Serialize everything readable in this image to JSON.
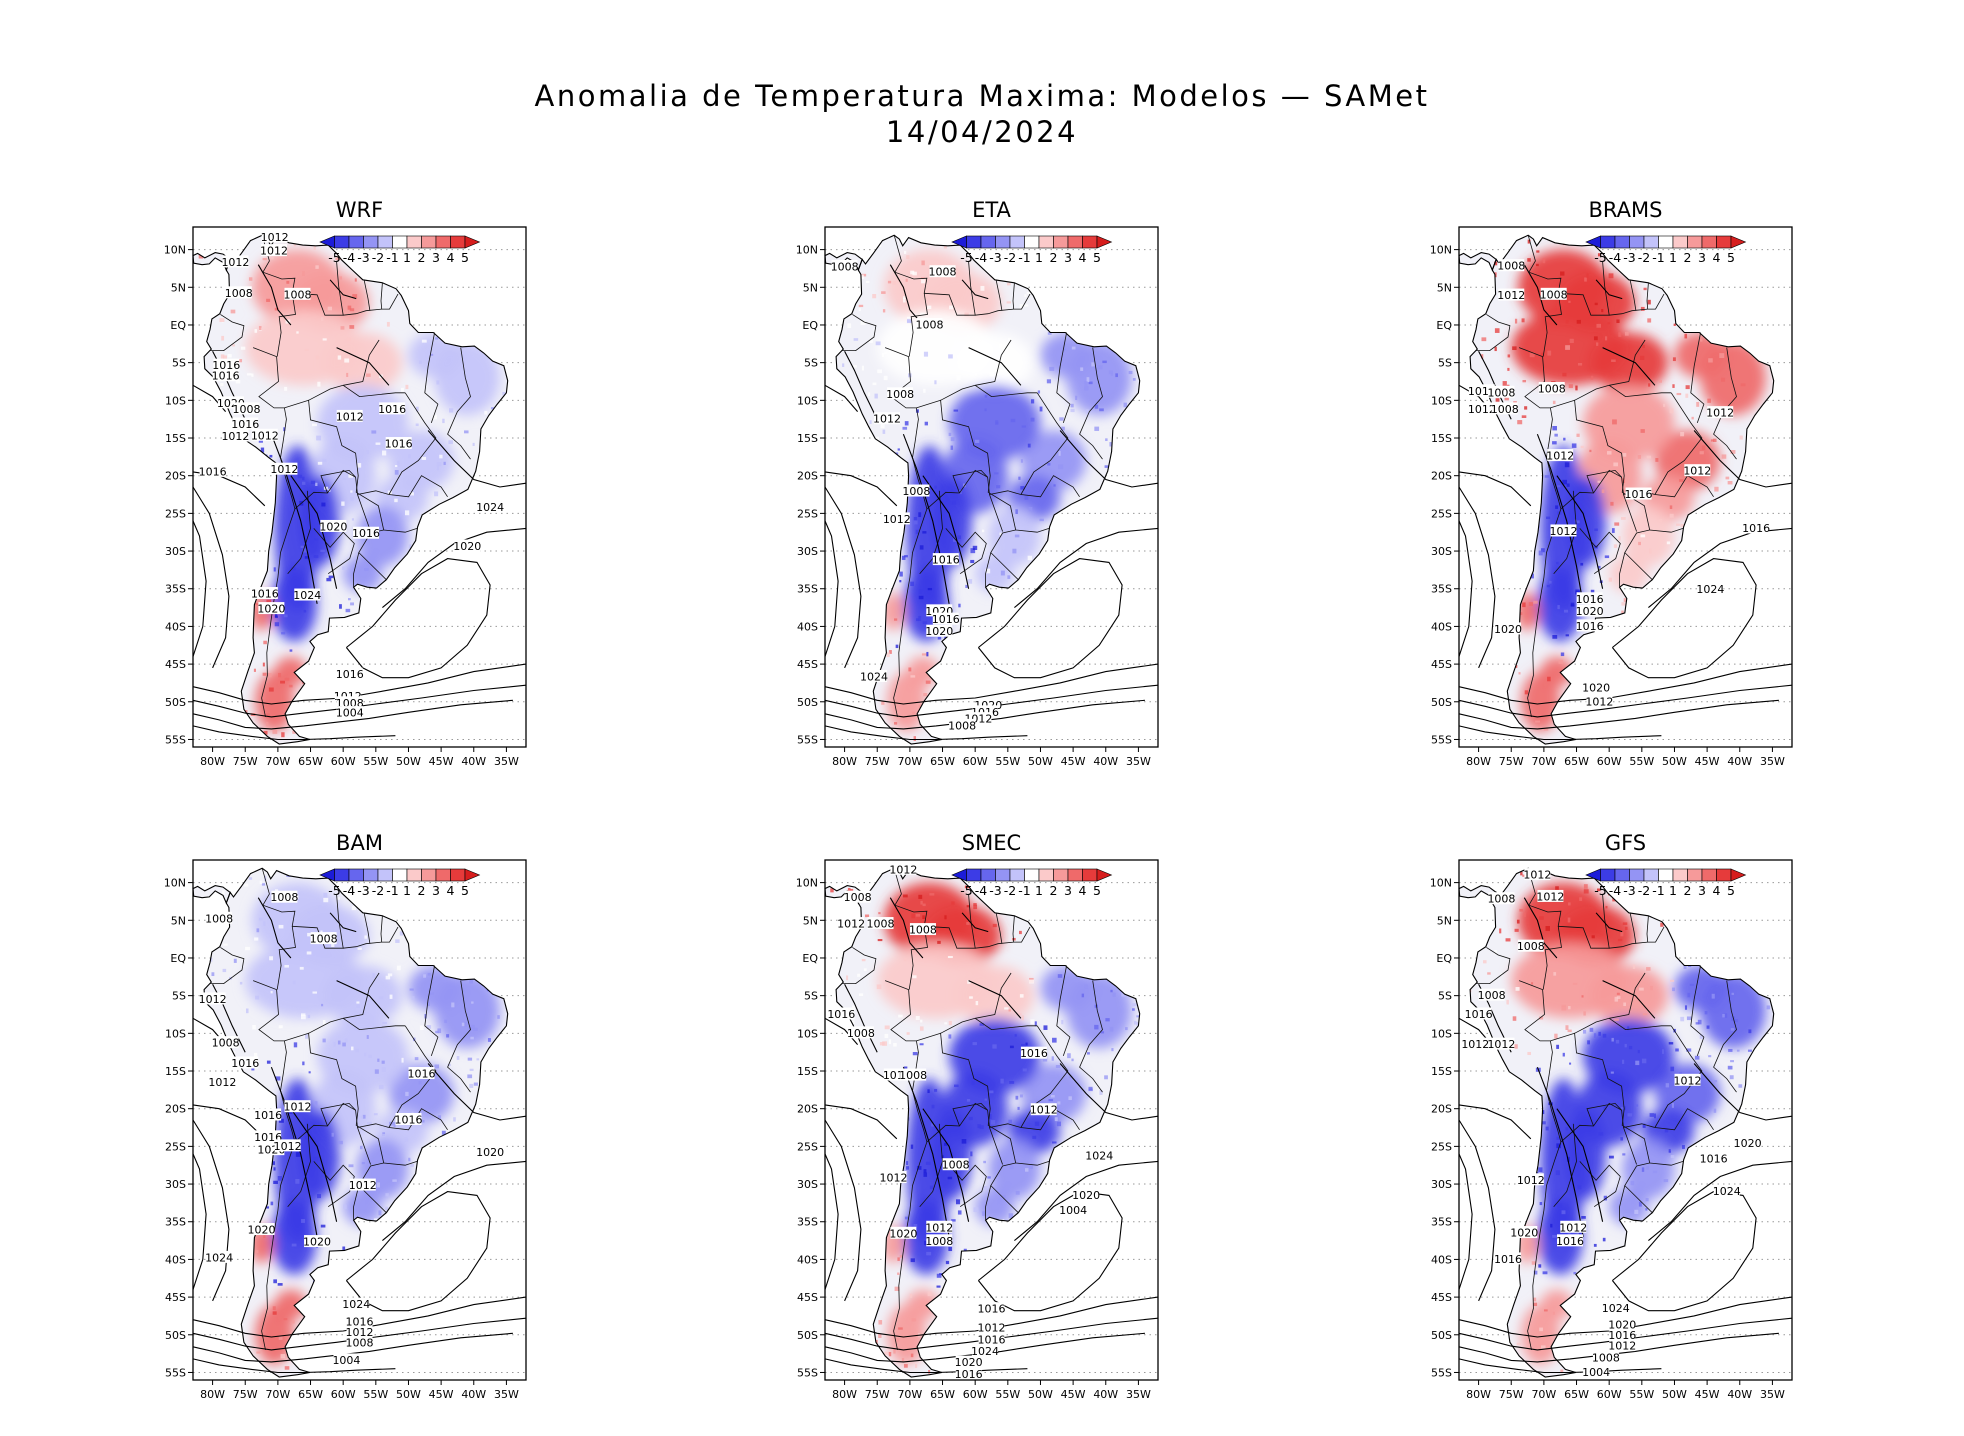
{
  "figure": {
    "title_line1": "Anomalia de Temperatura Maxima: Modelos — SAMet",
    "title_line2": "14/04/2024"
  },
  "axes": {
    "lon_labels": [
      "80W",
      "75W",
      "70W",
      "65W",
      "60W",
      "55W",
      "50W",
      "45W",
      "40W",
      "35W"
    ],
    "lat_labels": [
      "10N",
      "5N",
      "EQ",
      "5S",
      "10S",
      "15S",
      "20S",
      "25S",
      "30S",
      "35S",
      "40S",
      "45S",
      "50S",
      "55S"
    ]
  },
  "colorbar": {
    "labels": [
      "-5",
      "-4",
      "-3",
      "-2",
      "-1",
      "1",
      "2",
      "3",
      "4",
      "5"
    ],
    "colors": [
      "#1c1cd8",
      "#3c3ce6",
      "#6666ee",
      "#9494f4",
      "#c3c3fa",
      "#ffffff",
      "#fbcaca",
      "#f69a9a",
      "#ef6a6a",
      "#e63b3b",
      "#d61d1d"
    ]
  },
  "colors": {
    "land_neutral": "#f1f1f8",
    "warm": "#e43030",
    "cold": "#2a2ae0",
    "contour": "#000000"
  },
  "panels": [
    {
      "name": "WRF",
      "contour_labels": [
        "1012",
        "1012",
        "1012",
        "1008",
        "1008",
        "1016",
        "1016",
        "1020",
        "1008",
        "1012",
        "1016",
        "1016",
        "1012",
        "1012",
        "1016",
        "1012",
        "1016",
        "1020",
        "1024",
        "1016",
        "1020",
        "1016",
        "1024",
        "1020",
        "1016",
        "1012",
        "1008",
        "1004"
      ],
      "anomaly": {
        "north": 2.5,
        "amazon": 1.2,
        "northeast": -1.5,
        "central": -1.0,
        "andes": -4.5,
        "south": -2.5,
        "patagonia": 3.5
      }
    },
    {
      "name": "ETA",
      "contour_labels": [
        "1008",
        "1008",
        "1008",
        "1008",
        "1012",
        "1008",
        "1012",
        "1016",
        "1020",
        "1016",
        "1020",
        "1024",
        "1020",
        "1016",
        "1012",
        "1008"
      ],
      "anomaly": {
        "north": 1.2,
        "amazon": -0.8,
        "northeast": -2.5,
        "central": -3.5,
        "andes": -4.5,
        "south": -1.5,
        "patagonia": 2.5
      }
    },
    {
      "name": "BRAMS",
      "contour_labels": [
        "1008",
        "1012",
        "1008",
        "1016",
        "1008",
        "1008",
        "1012",
        "1012",
        "1008",
        "1012",
        "1016",
        "1012",
        "1012",
        "1016",
        "1020",
        "1016",
        "1024",
        "1020",
        "1020",
        "1016",
        "1012"
      ],
      "anomaly": {
        "north": 4.5,
        "amazon": 4.0,
        "northeast": 3.0,
        "central": 2.0,
        "andes": -4.5,
        "south": 1.5,
        "patagonia": 3.5
      }
    },
    {
      "name": "BAM",
      "contour_labels": [
        "1008",
        "1008",
        "1008",
        "1012",
        "1008",
        "1016",
        "1012",
        "1016",
        "1012",
        "1016",
        "1020",
        "1012",
        "1012",
        "1016",
        "1016",
        "1020",
        "1020",
        "1024",
        "1024",
        "1020",
        "1016",
        "1012",
        "1008",
        "1004"
      ],
      "anomaly": {
        "north": -1.0,
        "amazon": -1.0,
        "northeast": -2.0,
        "central": -1.8,
        "andes": -4.8,
        "south": -2.0,
        "patagonia": 3.0
      }
    },
    {
      "name": "SMEC",
      "contour_labels": [
        "1012",
        "1008",
        "1012",
        "1008",
        "1008",
        "1016",
        "1008",
        "1012",
        "1008",
        "1016",
        "1012",
        "1012",
        "1008",
        "1020",
        "1024",
        "1020",
        "1016",
        "1012",
        "1016",
        "1024",
        "1020",
        "1016",
        "1012",
        "1008",
        "1004"
      ],
      "anomaly": {
        "north": 4.5,
        "amazon": 1.0,
        "northeast": -2.5,
        "central": -4.0,
        "andes": -4.8,
        "south": -2.0,
        "patagonia": 2.5
      }
    },
    {
      "name": "GFS",
      "contour_labels": [
        "1012",
        "1012",
        "1008",
        "1008",
        "1008",
        "1016",
        "1012",
        "1012",
        "1012",
        "1016",
        "1012",
        "1020",
        "1012",
        "1016",
        "1016",
        "1020",
        "1024",
        "1024",
        "1020",
        "1016",
        "1012",
        "1008",
        "1004"
      ],
      "anomaly": {
        "north": 4.5,
        "amazon": 2.0,
        "northeast": -3.0,
        "central": -4.0,
        "andes": -4.8,
        "south": -2.5,
        "patagonia": 2.5
      }
    }
  ]
}
